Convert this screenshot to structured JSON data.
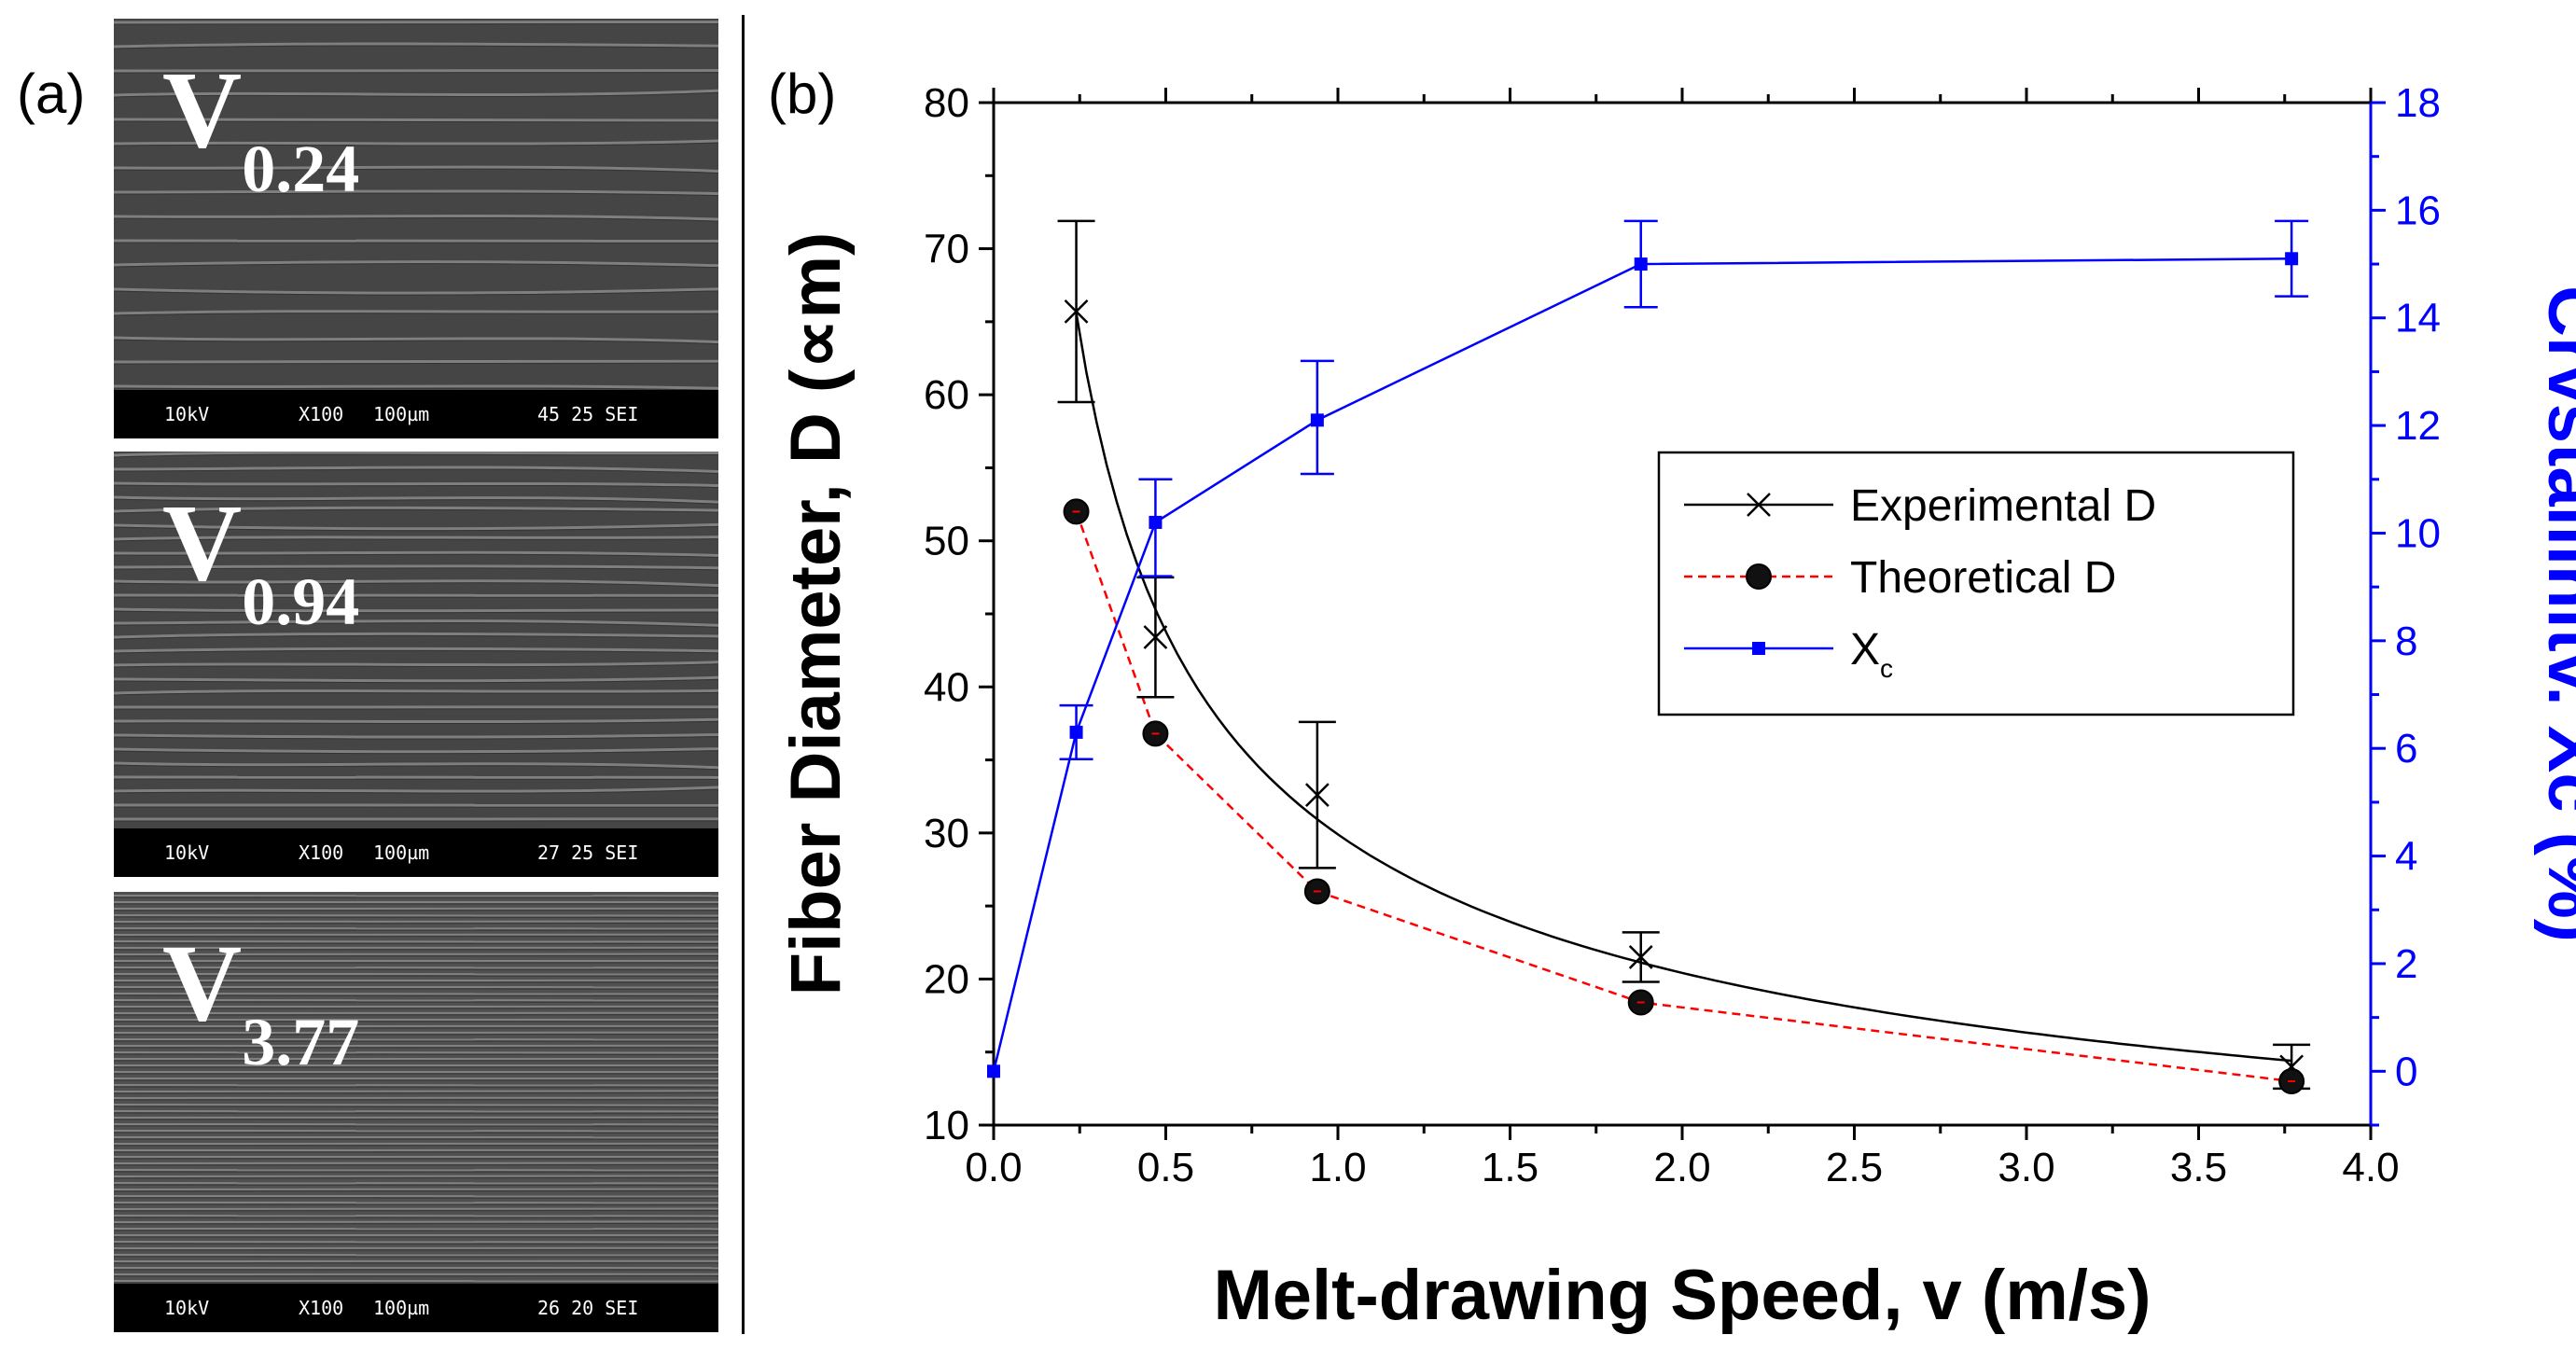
{
  "panel_a": {
    "label": "(a)",
    "images": [
      {
        "speed_main": "V",
        "speed_sub": "0.24",
        "bar": {
          "kv": "10kV",
          "mag": "X100",
          "scale": "100µm",
          "id": "45 25 SEI"
        }
      },
      {
        "speed_main": "V",
        "speed_sub": "0.94",
        "bar": {
          "kv": "10kV",
          "mag": "X100",
          "scale": "100µm",
          "id": "27 25 SEI"
        }
      },
      {
        "speed_main": "V",
        "speed_sub": "3.77",
        "bar": {
          "kv": "10kV",
          "mag": "X100",
          "scale": "100µm",
          "id": "26 20 SEI"
        }
      }
    ]
  },
  "panel_b": {
    "label": "(b)"
  },
  "chart_data": {
    "type": "line",
    "title": "",
    "xlabel": "Melt-drawing Speed, v (m/s)",
    "ylabel": "Fiber Diameter, D (∝m)",
    "y2label": "Crvstallinitv. Xc (%)",
    "xlim": [
      0.0,
      4.0
    ],
    "ylim": [
      10,
      80
    ],
    "y2lim": [
      -1,
      18
    ],
    "xticks": [
      "0.0",
      "0.5",
      "1.0",
      "1.5",
      "2.0",
      "2.5",
      "3.0",
      "3.5",
      "4.0"
    ],
    "yticks": [
      "10",
      "20",
      "30",
      "40",
      "50",
      "60",
      "70",
      "80"
    ],
    "y2ticks": [
      "0",
      "2",
      "4",
      "6",
      "8",
      "10",
      "12",
      "14",
      "16",
      "18"
    ],
    "grid": false,
    "legend_position": "center-right",
    "colors": {
      "experimental": "#000000",
      "theoretical": "#ff0000",
      "crystallinity": "#0000ff"
    },
    "series": [
      {
        "name": "Experimental D",
        "axis": "left",
        "marker": "x",
        "x": [
          0.24,
          0.47,
          0.94,
          1.88,
          3.77
        ],
        "y": [
          65.7,
          43.4,
          32.6,
          21.5,
          14.0
        ],
        "err_high": [
          71.9,
          47.5,
          37.6,
          23.2,
          15.5
        ],
        "err_low": [
          59.5,
          39.3,
          27.6,
          19.8,
          12.5
        ],
        "fit": "power"
      },
      {
        "name": "Theoretical D",
        "axis": "left",
        "marker": "circle",
        "x": [
          0.24,
          0.47,
          0.94,
          1.88,
          3.77
        ],
        "y": [
          52.0,
          36.8,
          26.0,
          18.4,
          13.0
        ]
      },
      {
        "name": "X",
        "name_sub": "c",
        "axis": "right",
        "marker": "square",
        "x": [
          0.0,
          0.24,
          0.47,
          0.94,
          1.88,
          3.77
        ],
        "y": [
          0.0,
          6.3,
          10.2,
          12.1,
          15.0,
          15.1
        ],
        "err_high": [
          0.0,
          6.8,
          11.0,
          13.2,
          15.8,
          15.8
        ],
        "err_low": [
          0.0,
          5.8,
          9.2,
          11.1,
          14.2,
          14.4
        ]
      }
    ]
  }
}
